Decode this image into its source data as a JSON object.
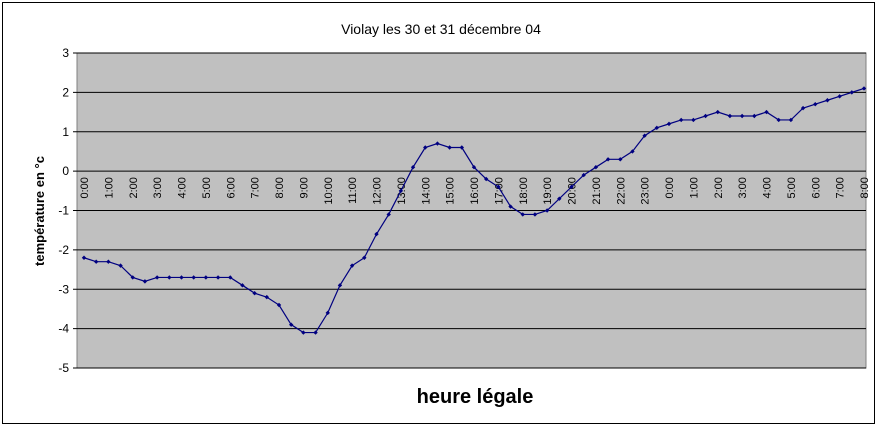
{
  "chart_data": {
    "type": "line",
    "title": "Violay les 30 et 31 décembre 04",
    "xlabel": "heure légale",
    "ylabel": "température en °c",
    "ylim": [
      -5,
      3
    ],
    "yticks": [
      3,
      2,
      1,
      0,
      -1,
      -2,
      -3,
      -4,
      -5
    ],
    "grid": true,
    "legend": "none",
    "colors": {
      "plot_bg": "#c0c0c0",
      "line": "#000080",
      "grid": "#000000"
    },
    "x_tick_labels": [
      "0:00",
      "1:00",
      "2:00",
      "3:00",
      "4:00",
      "5:00",
      "6:00",
      "7:00",
      "8:00",
      "9:00",
      "10:00",
      "11:00",
      "12:00",
      "13:00",
      "14:00",
      "15:00",
      "16:00",
      "17:00",
      "18:00",
      "19:00",
      "20:00",
      "21:00",
      "22:00",
      "23:00",
      "0:00",
      "1:00",
      "2:00",
      "3:00",
      "4:00",
      "5:00",
      "6:00",
      "7:00",
      "8:00"
    ],
    "series": [
      {
        "values": [
          -2.2,
          -2.3,
          -2.3,
          -2.4,
          -2.7,
          -2.8,
          -2.7,
          -2.7,
          -2.7,
          -2.7,
          -2.7,
          -2.7,
          -2.7,
          -2.9,
          -3.1,
          -3.2,
          -3.4,
          -3.9,
          -4.1,
          -4.1,
          -3.6,
          -2.9,
          -2.4,
          -2.2,
          -1.6,
          -1.1,
          -0.5,
          0.1,
          0.6,
          0.7,
          0.6,
          0.6,
          0.1,
          -0.2,
          -0.4,
          -0.9,
          -1.1,
          -1.1,
          -1.0,
          -0.7,
          -0.4,
          -0.1,
          0.1,
          0.3,
          0.3,
          0.5,
          0.9,
          1.1,
          1.2,
          1.3,
          1.3,
          1.4,
          1.5,
          1.4,
          1.4,
          1.4,
          1.5,
          1.3,
          1.3,
          1.6,
          1.7,
          1.8,
          1.9,
          2.0,
          2.1
        ]
      }
    ]
  }
}
